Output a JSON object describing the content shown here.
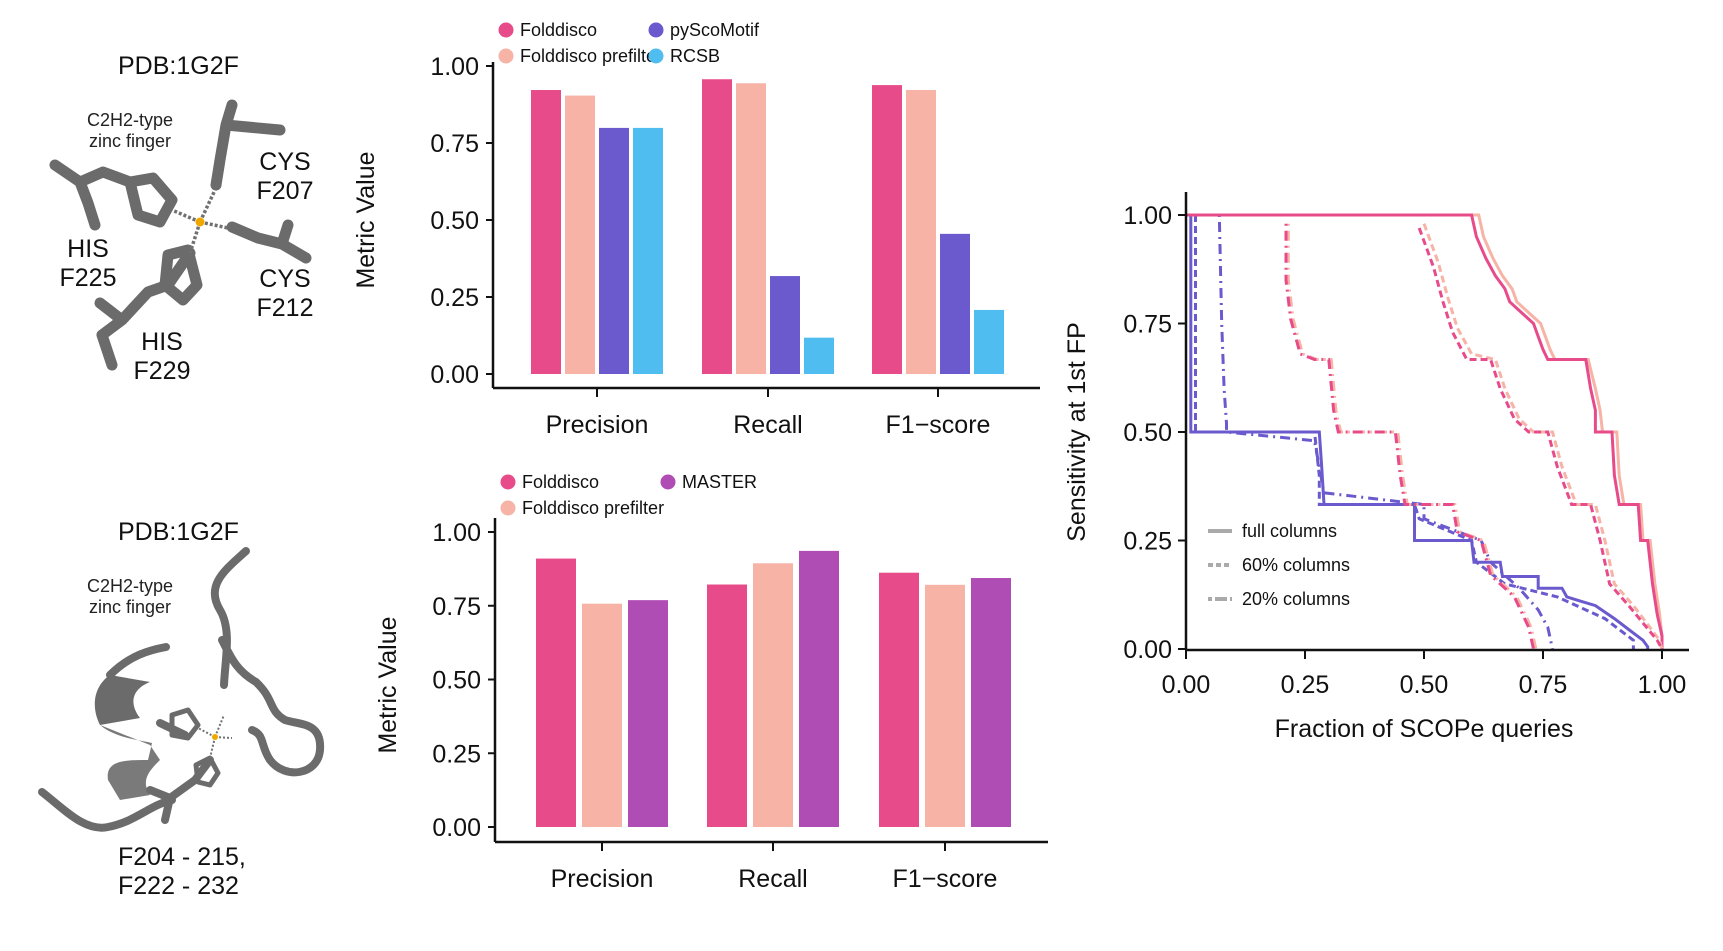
{
  "structures": {
    "top": {
      "title": "PDB:1G2F",
      "subtitle_line1": "C2H2-type",
      "subtitle_line2": "zinc finger",
      "residues": [
        {
          "name": "CYS",
          "id": "F207"
        },
        {
          "name": "CYS",
          "id": "F212"
        },
        {
          "name": "HIS",
          "id": "F225"
        },
        {
          "name": "HIS",
          "id": "F229"
        }
      ]
    },
    "bottom": {
      "title": "PDB:1G2F",
      "subtitle_line1": "C2H2-type",
      "subtitle_line2": "zinc finger",
      "range_line1": "F204 - 215,",
      "range_line2": "F222 - 232"
    }
  },
  "colors": {
    "folddisco": "#E84B8A",
    "folddisco_prefilter": "#F6B3A6",
    "pyscomotif": "#6A5ACD",
    "rcsb": "#4FBDF0",
    "master": "#B04DB5",
    "legend_gray": "#aaaaaa"
  },
  "chart_data": [
    {
      "type": "bar",
      "title": "",
      "xlabel": "",
      "ylabel": "Metric Value",
      "ylim": [
        0,
        1
      ],
      "yticks": [
        "0.00",
        "0.25",
        "0.50",
        "0.75",
        "1.00"
      ],
      "legend_position": "top",
      "categories": [
        "Precision",
        "Recall",
        "F1−score"
      ],
      "series": [
        {
          "name": "Folddisco",
          "color_key": "folddisco",
          "values": [
            0.922,
            0.957,
            0.938
          ]
        },
        {
          "name": "Folddisco prefilter",
          "color_key": "folddisco_prefilter",
          "values": [
            0.904,
            0.944,
            0.922
          ]
        },
        {
          "name": "pyScoMotif",
          "color_key": "pyscomotif",
          "values": [
            0.799,
            0.318,
            0.455
          ]
        },
        {
          "name": "RCSB",
          "color_key": "rcsb",
          "values": [
            0.799,
            0.118,
            0.208
          ]
        }
      ]
    },
    {
      "type": "bar",
      "title": "",
      "xlabel": "",
      "ylabel": "Metric Value",
      "ylim": [
        0,
        1
      ],
      "yticks": [
        "0.00",
        "0.25",
        "0.50",
        "0.75",
        "1.00"
      ],
      "legend_position": "top",
      "categories": [
        "Precision",
        "Recall",
        "F1−score"
      ],
      "series": [
        {
          "name": "Folddisco",
          "color_key": "folddisco",
          "values": [
            0.91,
            0.822,
            0.862
          ]
        },
        {
          "name": "Folddisco prefilter",
          "color_key": "folddisco_prefilter",
          "values": [
            0.757,
            0.894,
            0.821
          ]
        },
        {
          "name": "MASTER",
          "color_key": "master",
          "values": [
            0.769,
            0.936,
            0.844
          ]
        }
      ]
    },
    {
      "type": "line",
      "step": true,
      "title": "",
      "xlabel": "Fraction of SCOPe queries",
      "ylabel": "Sensitivity at 1st FP",
      "xlim": [
        0,
        1
      ],
      "ylim": [
        0,
        1
      ],
      "xticks": [
        "0.00",
        "0.25",
        "0.50",
        "0.75",
        "1.00"
      ],
      "yticks": [
        "0.00",
        "0.25",
        "0.50",
        "0.75",
        "1.00"
      ],
      "legend_position": "bottom-left",
      "legend": [
        {
          "label": "full columns",
          "style": "solid"
        },
        {
          "label": "60% columns",
          "style": "dashed"
        },
        {
          "label": "20% columns",
          "style": "dotdash"
        }
      ],
      "series": [
        {
          "name": "pyScoMotif full columns",
          "color_key": "pyscomotif",
          "style": "solid",
          "points": [
            [
              0,
              1
            ],
            [
              0.01,
              1
            ],
            [
              0.01,
              0.5
            ],
            [
              0.28,
              0.5
            ],
            [
              0.285,
              0.42
            ],
            [
              0.29,
              0.333
            ],
            [
              0.48,
              0.333
            ],
            [
              0.48,
              0.25
            ],
            [
              0.6,
              0.25
            ],
            [
              0.605,
              0.2
            ],
            [
              0.66,
              0.2
            ],
            [
              0.665,
              0.167
            ],
            [
              0.74,
              0.167
            ],
            [
              0.74,
              0.14
            ],
            [
              0.79,
              0.14
            ],
            [
              0.8,
              0.12
            ],
            [
              0.83,
              0.11
            ],
            [
              0.86,
              0.1
            ],
            [
              0.88,
              0.085
            ],
            [
              0.9,
              0.07
            ],
            [
              0.93,
              0.045
            ],
            [
              0.96,
              0.02
            ],
            [
              0.97,
              0.005
            ],
            [
              0.97,
              0
            ]
          ]
        },
        {
          "name": "pyScoMotif 60% columns",
          "color_key": "pyscomotif",
          "style": "dashed",
          "points": [
            [
              0.02,
              1
            ],
            [
              0.02,
              0.5
            ],
            [
              0.27,
              0.5
            ],
            [
              0.28,
              0.4
            ],
            [
              0.28,
              0.333
            ],
            [
              0.48,
              0.333
            ],
            [
              0.49,
              0.3
            ],
            [
              0.6,
              0.25
            ],
            [
              0.61,
              0.2
            ],
            [
              0.67,
              0.15
            ],
            [
              0.78,
              0.12
            ],
            [
              0.88,
              0.07
            ],
            [
              0.94,
              0.02
            ],
            [
              0.94,
              0
            ]
          ]
        },
        {
          "name": "pyScoMotif 20% columns",
          "color_key": "pyscomotif",
          "style": "dotdash",
          "points": [
            [
              0.07,
              1
            ],
            [
              0.075,
              0.75
            ],
            [
              0.08,
              0.6
            ],
            [
              0.085,
              0.52
            ],
            [
              0.085,
              0.5
            ],
            [
              0.27,
              0.48
            ],
            [
              0.29,
              0.36
            ],
            [
              0.5,
              0.333
            ],
            [
              0.5,
              0.3
            ],
            [
              0.62,
              0.25
            ],
            [
              0.64,
              0.2
            ],
            [
              0.7,
              0.14
            ],
            [
              0.74,
              0.09
            ],
            [
              0.76,
              0.05
            ],
            [
              0.77,
              0
            ]
          ]
        },
        {
          "name": "Folddisco prefilter full columns",
          "color_key": "folddisco_prefilter",
          "style": "solid",
          "points": [
            [
              0,
              1
            ],
            [
              0.615,
              1
            ],
            [
              0.625,
              0.95
            ],
            [
              0.645,
              0.9
            ],
            [
              0.665,
              0.86
            ],
            [
              0.685,
              0.83
            ],
            [
              0.695,
              0.8
            ],
            [
              0.715,
              0.78
            ],
            [
              0.745,
              0.75
            ],
            [
              0.755,
              0.72
            ],
            [
              0.765,
              0.69
            ],
            [
              0.775,
              0.667
            ],
            [
              0.845,
              0.667
            ],
            [
              0.86,
              0.6
            ],
            [
              0.87,
              0.55
            ],
            [
              0.875,
              0.5
            ],
            [
              0.905,
              0.5
            ],
            [
              0.91,
              0.4
            ],
            [
              0.92,
              0.333
            ],
            [
              0.955,
              0.333
            ],
            [
              0.96,
              0.25
            ],
            [
              0.975,
              0.25
            ],
            [
              0.985,
              0.15
            ],
            [
              0.995,
              0.08
            ],
            [
              1.0,
              0.03
            ],
            [
              1.0,
              0
            ]
          ]
        },
        {
          "name": "Folddisco full columns",
          "color_key": "folddisco",
          "style": "solid",
          "points": [
            [
              0,
              1
            ],
            [
              0.6,
              1
            ],
            [
              0.61,
              0.95
            ],
            [
              0.63,
              0.9
            ],
            [
              0.65,
              0.86
            ],
            [
              0.67,
              0.83
            ],
            [
              0.68,
              0.8
            ],
            [
              0.7,
              0.78
            ],
            [
              0.73,
              0.75
            ],
            [
              0.74,
              0.72
            ],
            [
              0.75,
              0.69
            ],
            [
              0.76,
              0.667
            ],
            [
              0.84,
              0.667
            ],
            [
              0.85,
              0.6
            ],
            [
              0.86,
              0.55
            ],
            [
              0.86,
              0.5
            ],
            [
              0.895,
              0.5
            ],
            [
              0.9,
              0.4
            ],
            [
              0.91,
              0.333
            ],
            [
              0.95,
              0.333
            ],
            [
              0.955,
              0.25
            ],
            [
              0.97,
              0.25
            ],
            [
              0.98,
              0.15
            ],
            [
              0.99,
              0.08
            ],
            [
              1.0,
              0.03
            ],
            [
              1.0,
              0
            ]
          ]
        },
        {
          "name": "Folddisco prefilter 60% columns",
          "color_key": "folddisco_prefilter",
          "style": "dashed",
          "points": [
            [
              0.5,
              0.98
            ],
            [
              0.53,
              0.89
            ],
            [
              0.55,
              0.81
            ],
            [
              0.57,
              0.74
            ],
            [
              0.6,
              0.68
            ],
            [
              0.65,
              0.667
            ],
            [
              0.67,
              0.6
            ],
            [
              0.7,
              0.53
            ],
            [
              0.73,
              0.5
            ],
            [
              0.77,
              0.5
            ],
            [
              0.79,
              0.42
            ],
            [
              0.82,
              0.333
            ],
            [
              0.86,
              0.333
            ],
            [
              0.88,
              0.25
            ],
            [
              0.9,
              0.15
            ],
            [
              0.94,
              0.1
            ],
            [
              0.995,
              0.02
            ],
            [
              1.0,
              0
            ]
          ]
        },
        {
          "name": "Folddisco 60% columns",
          "color_key": "folddisco",
          "style": "dashed",
          "points": [
            [
              0.49,
              0.97
            ],
            [
              0.52,
              0.88
            ],
            [
              0.54,
              0.8
            ],
            [
              0.56,
              0.73
            ],
            [
              0.59,
              0.667
            ],
            [
              0.64,
              0.667
            ],
            [
              0.66,
              0.6
            ],
            [
              0.69,
              0.53
            ],
            [
              0.72,
              0.5
            ],
            [
              0.76,
              0.5
            ],
            [
              0.78,
              0.42
            ],
            [
              0.81,
              0.333
            ],
            [
              0.85,
              0.333
            ],
            [
              0.87,
              0.25
            ],
            [
              0.89,
              0.15
            ],
            [
              0.93,
              0.1
            ],
            [
              0.99,
              0.02
            ],
            [
              1.0,
              0
            ]
          ]
        },
        {
          "name": "Folddisco prefilter 20% columns",
          "color_key": "folddisco_prefilter",
          "style": "dotdash",
          "points": [
            [
              0.215,
              0.98
            ],
            [
              0.215,
              0.85
            ],
            [
              0.225,
              0.76
            ],
            [
              0.245,
              0.68
            ],
            [
              0.275,
              0.667
            ],
            [
              0.305,
              0.667
            ],
            [
              0.315,
              0.55
            ],
            [
              0.325,
              0.5
            ],
            [
              0.445,
              0.5
            ],
            [
              0.455,
              0.4
            ],
            [
              0.465,
              0.333
            ],
            [
              0.565,
              0.333
            ],
            [
              0.575,
              0.27
            ],
            [
              0.625,
              0.25
            ],
            [
              0.645,
              0.17
            ],
            [
              0.695,
              0.12
            ],
            [
              0.725,
              0.05
            ],
            [
              0.735,
              0
            ]
          ]
        },
        {
          "name": "Folddisco 20% columns",
          "color_key": "folddisco",
          "style": "dotdash",
          "points": [
            [
              0.21,
              0.98
            ],
            [
              0.21,
              0.85
            ],
            [
              0.22,
              0.76
            ],
            [
              0.24,
              0.68
            ],
            [
              0.27,
              0.667
            ],
            [
              0.3,
              0.667
            ],
            [
              0.31,
              0.55
            ],
            [
              0.32,
              0.5
            ],
            [
              0.44,
              0.5
            ],
            [
              0.45,
              0.4
            ],
            [
              0.46,
              0.333
            ],
            [
              0.56,
              0.333
            ],
            [
              0.57,
              0.27
            ],
            [
              0.62,
              0.25
            ],
            [
              0.64,
              0.17
            ],
            [
              0.69,
              0.12
            ],
            [
              0.72,
              0.05
            ],
            [
              0.73,
              0
            ]
          ]
        }
      ]
    }
  ]
}
